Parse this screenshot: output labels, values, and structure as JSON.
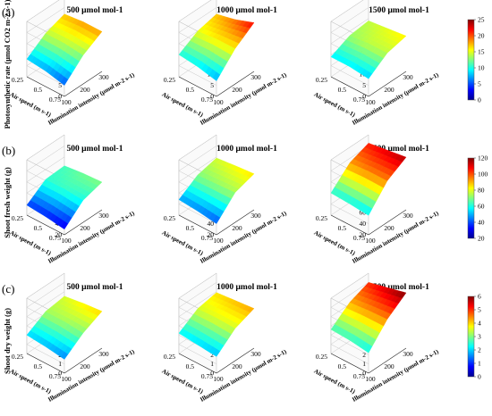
{
  "figure": {
    "panel_labels": [
      "(a)",
      "(b)",
      "(c)"
    ],
    "column_titles": [
      "500 μmol mol-1",
      "1000 μmol mol-1",
      "1500 μmol mol-1"
    ],
    "colormap": [
      "#00008f",
      "#0000ff",
      "#0080ff",
      "#00ffff",
      "#80ff80",
      "#ffff00",
      "#ff8000",
      "#ff0000",
      "#800000"
    ]
  },
  "chart_data": [
    {
      "type": "surface",
      "row": "a",
      "zlabel": "Photosynthetic rate (μmol CO2 m-2 s-1)",
      "xlabel": "Illumination  intensity  (μmol m-2 s-1)",
      "ylabel": "Air speed (m s-1)",
      "x_ticks": [
        "100",
        "200",
        "300"
      ],
      "y_ticks": [
        "0.75",
        "0.5",
        "0.25"
      ],
      "z_ticks": [
        "0",
        "5",
        "10",
        "15",
        "20",
        "25"
      ],
      "zlim": [
        0,
        25
      ],
      "colorbar_ticks": [
        "0",
        "5",
        "10",
        "15",
        "20",
        "25"
      ],
      "colorbar_range": [
        0,
        25
      ],
      "x_values": [
        100,
        200,
        300
      ],
      "y_values": [
        0.75,
        0.5,
        0.25
      ],
      "series": [
        {
          "name": "500 μmol mol-1",
          "values": [
            [
              5,
              13,
              18
            ],
            [
              7,
              14,
              18
            ],
            [
              8,
              14,
              17
            ]
          ]
        },
        {
          "name": "1000 μmol mol-1",
          "values": [
            [
              7,
              16,
              22
            ],
            [
              9,
              16,
              19
            ],
            [
              10,
              15,
              17
            ]
          ]
        },
        {
          "name": "1500 μmol mol-1",
          "values": [
            [
              8,
              14,
              16
            ],
            [
              9,
              14,
              15
            ],
            [
              9,
              13,
              14
            ]
          ]
        }
      ]
    },
    {
      "type": "surface",
      "row": "b",
      "zlabel": "Shoot fresh weight (g)",
      "xlabel": "Illumination  intensity  (μmol m-2 s-1)",
      "ylabel": "Air speed (m s-1)",
      "x_ticks": [
        "100",
        "200",
        "300"
      ],
      "y_ticks": [
        "0.75",
        "0.5",
        "0.25"
      ],
      "z_ticks": [
        "20",
        "40",
        "60",
        "80",
        "100",
        "120"
      ],
      "zlim": [
        20,
        120
      ],
      "colorbar_ticks": [
        "20",
        "40",
        "60",
        "80",
        "100",
        "120"
      ],
      "colorbar_range": [
        20,
        120
      ],
      "x_values": [
        100,
        200,
        300
      ],
      "y_values": [
        0.75,
        0.5,
        0.25
      ],
      "series": [
        {
          "name": "500 μmol mol-1",
          "values": [
            [
              30,
              60,
              70
            ],
            [
              35,
              63,
              68
            ],
            [
              38,
              62,
              64
            ]
          ]
        },
        {
          "name": "1000 μmol mol-1",
          "values": [
            [
              40,
              74,
              85
            ],
            [
              45,
              72,
              82
            ],
            [
              48,
              70,
              78
            ]
          ]
        },
        {
          "name": "1500 μmol mol-1",
          "values": [
            [
              55,
              95,
              115
            ],
            [
              58,
              95,
              110
            ],
            [
              60,
              92,
              105
            ]
          ]
        }
      ]
    },
    {
      "type": "surface",
      "row": "c",
      "zlabel": "Shoot dry weight (g)",
      "xlabel": "Illumination  intensity  (μmol m-2 s-1)",
      "ylabel": "Air speed (m s-1)",
      "x_ticks": [
        "100",
        "200",
        "300"
      ],
      "y_ticks": [
        "0.75",
        "0.5",
        "0.25"
      ],
      "z_ticks": [
        "0",
        "1",
        "2",
        "3",
        "4",
        "5",
        "6"
      ],
      "zlim": [
        0,
        6
      ],
      "colorbar_ticks": [
        "0",
        "1",
        "2",
        "3",
        "4",
        "5",
        "6"
      ],
      "colorbar_range": [
        0,
        6
      ],
      "x_values": [
        100,
        200,
        300
      ],
      "y_values": [
        0.75,
        0.5,
        0.25
      ],
      "series": [
        {
          "name": "500 μmol mol-1",
          "values": [
            [
              1.5,
              3.0,
              4.0
            ],
            [
              1.8,
              3.2,
              3.8
            ],
            [
              2.0,
              3.2,
              3.5
            ]
          ]
        },
        {
          "name": "1000 μmol mol-1",
          "values": [
            [
              1.8,
              3.5,
              4.3
            ],
            [
              2.0,
              3.6,
              4.1
            ],
            [
              2.2,
              3.5,
              3.9
            ]
          ]
        },
        {
          "name": "1500 μmol mol-1",
          "values": [
            [
              2.2,
              4.5,
              6.0
            ],
            [
              2.5,
              4.4,
              5.5
            ],
            [
              2.6,
              4.2,
              5.0
            ]
          ]
        }
      ]
    }
  ]
}
